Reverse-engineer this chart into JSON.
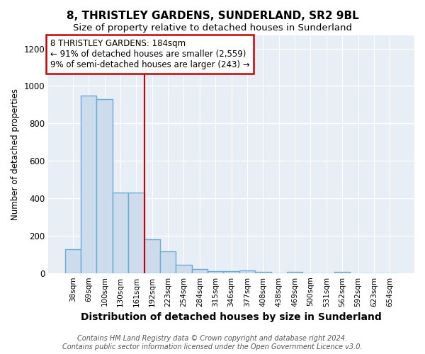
{
  "title": "8, THRISTLEY GARDENS, SUNDERLAND, SR2 9BL",
  "subtitle": "Size of property relative to detached houses in Sunderland",
  "xlabel": "Distribution of detached houses by size in Sunderland",
  "ylabel": "Number of detached properties",
  "footer_line1": "Contains HM Land Registry data © Crown copyright and database right 2024.",
  "footer_line2": "Contains public sector information licensed under the Open Government Licence v3.0.",
  "categories": [
    "38sqm",
    "69sqm",
    "100sqm",
    "130sqm",
    "161sqm",
    "192sqm",
    "223sqm",
    "254sqm",
    "284sqm",
    "315sqm",
    "346sqm",
    "377sqm",
    "408sqm",
    "438sqm",
    "469sqm",
    "500sqm",
    "531sqm",
    "562sqm",
    "592sqm",
    "623sqm",
    "654sqm"
  ],
  "values": [
    128,
    950,
    930,
    430,
    430,
    180,
    115,
    45,
    20,
    12,
    12,
    15,
    8,
    0,
    8,
    0,
    0,
    8,
    0,
    0,
    0
  ],
  "bar_color": "#ccdcec",
  "bar_edge_color": "#6aaad4",
  "bar_edge_width": 1.0,
  "property_label": "8 THRISTLEY GARDENS: 184sqm",
  "annotation_line1": "← 91% of detached houses are smaller (2,559)",
  "annotation_line2": "9% of semi-detached houses are larger (243) →",
  "vline_color": "#cc0000",
  "vline_x_index": 4.5,
  "annotation_box_color": "#ffffff",
  "annotation_box_edge": "#cc0000",
  "ylim": [
    0,
    1270
  ],
  "yticks": [
    0,
    200,
    400,
    600,
    800,
    1000,
    1200
  ],
  "fig_bg": "#ffffff",
  "plot_bg": "#e8eef5",
  "grid_color": "#ffffff",
  "title_fontsize": 11,
  "subtitle_fontsize": 9.5,
  "xlabel_fontsize": 10,
  "ylabel_fontsize": 8.5,
  "tick_fontsize": 7.5,
  "annot_fontsize": 8.5,
  "footer_fontsize": 7
}
